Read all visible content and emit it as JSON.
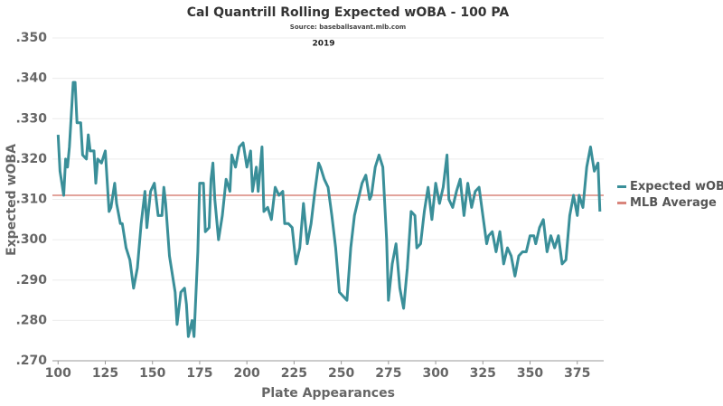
{
  "chart_data": {
    "type": "line",
    "title": "Cal Quantrill Rolling Expected wOBA - 100 PA",
    "subtitle": "Source: baseballsavant.mlb.com",
    "annotation": "2019",
    "x_label": "Plate Appearances",
    "y_label": "Expected wOBA",
    "xlim": [
      97,
      389
    ],
    "xticks": [
      100,
      125,
      150,
      175,
      200,
      225,
      250,
      275,
      300,
      325,
      350,
      375
    ],
    "ylim": [
      0.27,
      0.35
    ],
    "yticks": [
      {
        "value": 0.27,
        "label": ".270"
      },
      {
        "value": 0.28,
        "label": ".280"
      },
      {
        "value": 0.29,
        "label": ".290"
      },
      {
        "value": 0.3,
        "label": ".300"
      },
      {
        "value": 0.31,
        "label": ".310"
      },
      {
        "value": 0.32,
        "label": ".320"
      },
      {
        "value": 0.33,
        "label": ".330"
      },
      {
        "value": 0.34,
        "label": ".340"
      },
      {
        "value": 0.35,
        "label": ".350"
      }
    ],
    "grid": true,
    "legend": "right",
    "x": [
      100,
      101,
      103,
      104,
      105,
      106,
      108,
      109,
      110,
      112,
      113,
      115,
      116,
      117,
      119,
      120,
      121,
      123,
      125,
      127,
      128,
      130,
      131,
      133,
      134,
      136,
      138,
      140,
      142,
      144,
      146,
      147,
      149,
      151,
      153,
      155,
      156,
      157,
      159,
      160,
      162,
      163,
      165,
      167,
      168,
      169,
      171,
      172,
      174,
      175,
      177,
      178,
      180,
      181,
      182,
      183,
      185,
      187,
      189,
      191,
      192,
      194,
      196,
      198,
      200,
      202,
      203,
      205,
      206,
      208,
      209,
      211,
      213,
      215,
      217,
      219,
      220,
      222,
      224,
      226,
      228,
      230,
      232,
      234,
      236,
      238,
      239,
      241,
      243,
      245,
      247,
      249,
      251,
      253,
      255,
      257,
      259,
      261,
      263,
      265,
      266,
      268,
      270,
      272,
      274,
      275,
      277,
      279,
      281,
      283,
      285,
      287,
      289,
      290,
      292,
      294,
      296,
      298,
      300,
      302,
      304,
      306,
      307,
      309,
      311,
      313,
      315,
      317,
      319,
      321,
      323,
      325,
      327,
      328,
      330,
      332,
      334,
      336,
      338,
      340,
      342,
      344,
      346,
      348,
      350,
      352,
      353,
      355,
      357,
      359,
      361,
      363,
      365,
      367,
      369,
      371,
      373,
      375,
      376,
      378,
      380,
      382,
      384,
      386,
      387
    ],
    "series": [
      {
        "name": "Expected wOBA",
        "color": "#3a8f99",
        "values": [
          0.326,
          0.317,
          0.311,
          0.32,
          0.318,
          0.323,
          0.339,
          0.339,
          0.329,
          0.329,
          0.321,
          0.32,
          0.326,
          0.322,
          0.322,
          0.314,
          0.32,
          0.319,
          0.322,
          0.307,
          0.308,
          0.314,
          0.309,
          0.304,
          0.304,
          0.298,
          0.295,
          0.288,
          0.293,
          0.304,
          0.312,
          0.303,
          0.312,
          0.314,
          0.306,
          0.306,
          0.313,
          0.309,
          0.296,
          0.293,
          0.287,
          0.279,
          0.287,
          0.288,
          0.284,
          0.276,
          0.28,
          0.276,
          0.297,
          0.314,
          0.314,
          0.302,
          0.303,
          0.315,
          0.319,
          0.31,
          0.3,
          0.306,
          0.315,
          0.312,
          0.321,
          0.318,
          0.323,
          0.324,
          0.318,
          0.322,
          0.312,
          0.318,
          0.312,
          0.323,
          0.307,
          0.308,
          0.305,
          0.313,
          0.311,
          0.312,
          0.304,
          0.304,
          0.303,
          0.294,
          0.298,
          0.309,
          0.299,
          0.304,
          0.312,
          0.319,
          0.318,
          0.315,
          0.313,
          0.306,
          0.298,
          0.287,
          0.286,
          0.285,
          0.298,
          0.306,
          0.31,
          0.314,
          0.316,
          0.31,
          0.311,
          0.318,
          0.321,
          0.318,
          0.3,
          0.285,
          0.294,
          0.299,
          0.288,
          0.283,
          0.293,
          0.307,
          0.306,
          0.298,
          0.299,
          0.307,
          0.313,
          0.305,
          0.314,
          0.309,
          0.313,
          0.321,
          0.31,
          0.308,
          0.312,
          0.315,
          0.306,
          0.314,
          0.308,
          0.312,
          0.313,
          0.306,
          0.299,
          0.301,
          0.302,
          0.297,
          0.302,
          0.294,
          0.298,
          0.296,
          0.291,
          0.296,
          0.297,
          0.297,
          0.301,
          0.301,
          0.299,
          0.303,
          0.305,
          0.297,
          0.301,
          0.298,
          0.301,
          0.294,
          0.295,
          0.306,
          0.311,
          0.306,
          0.311,
          0.308,
          0.318,
          0.323,
          0.317,
          0.319,
          0.307
        ]
      }
    ],
    "reference_line": {
      "name": "MLB Average",
      "value": 0.311,
      "color": "#d9857c"
    }
  }
}
